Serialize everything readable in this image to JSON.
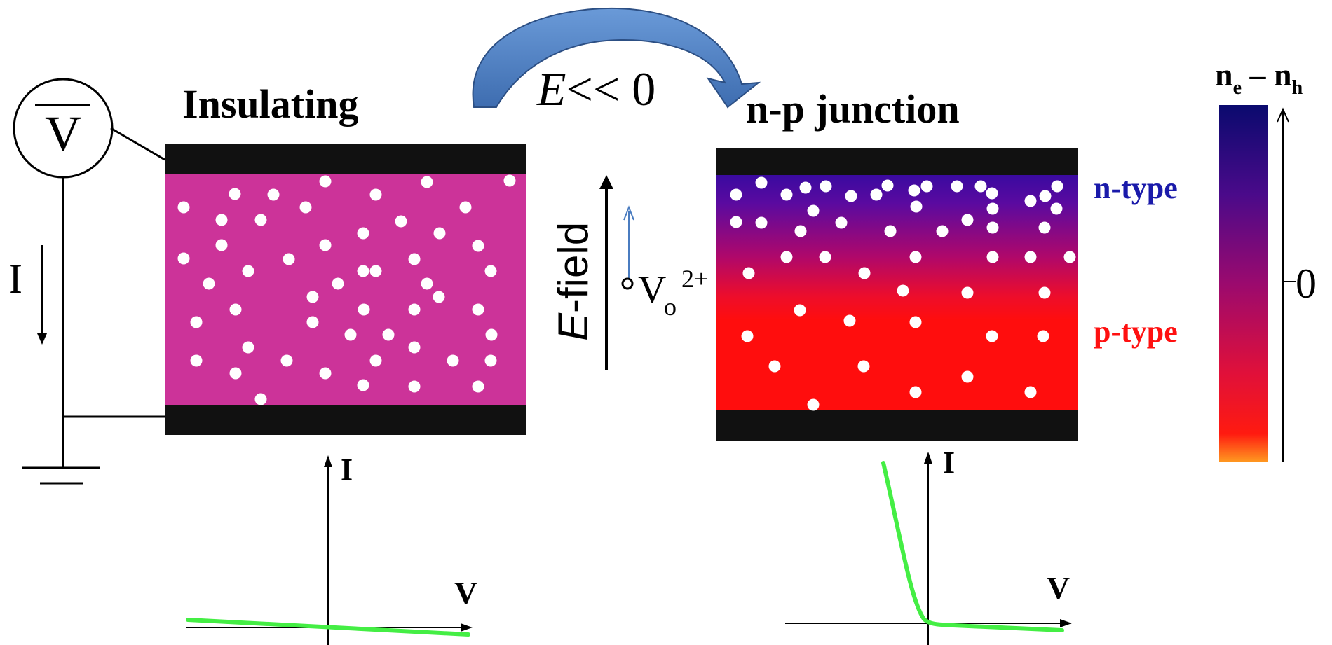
{
  "left_panel": {
    "title": "Insulating",
    "voltmeter_symbol": "V",
    "current_label": "I",
    "color": "#cc3399",
    "iv": {
      "axis_x": "V",
      "axis_y": "I"
    }
  },
  "transition": {
    "condition_symbol": "E",
    "condition_rest": "<< 0"
  },
  "field": {
    "label_symbol": "E",
    "label_rest": "-field",
    "vacancy_base": "V",
    "vacancy_sub": "o",
    "vacancy_sup": "2+"
  },
  "right_panel": {
    "title": "n-p junction",
    "n_label": "n-type",
    "p_label": "p-type",
    "n_color": "#1a1aaa",
    "p_color": "#ff1010",
    "iv": {
      "axis_x": "V",
      "axis_y": "I"
    }
  },
  "colorbar": {
    "label_base1": "n",
    "label_sub1": "e",
    "label_dash": " – ",
    "label_base2": "n",
    "label_sub2": "h",
    "tick_label": "0",
    "color_top": "#0a0a6e",
    "color_mid": "#9b0a6e",
    "color_bottom": "#ff8c1a"
  },
  "colors": {
    "electrode": "#111111",
    "curve": "#44ee44",
    "arrow": "#4a7cc0",
    "arrow_edge": "#2c4f84"
  }
}
